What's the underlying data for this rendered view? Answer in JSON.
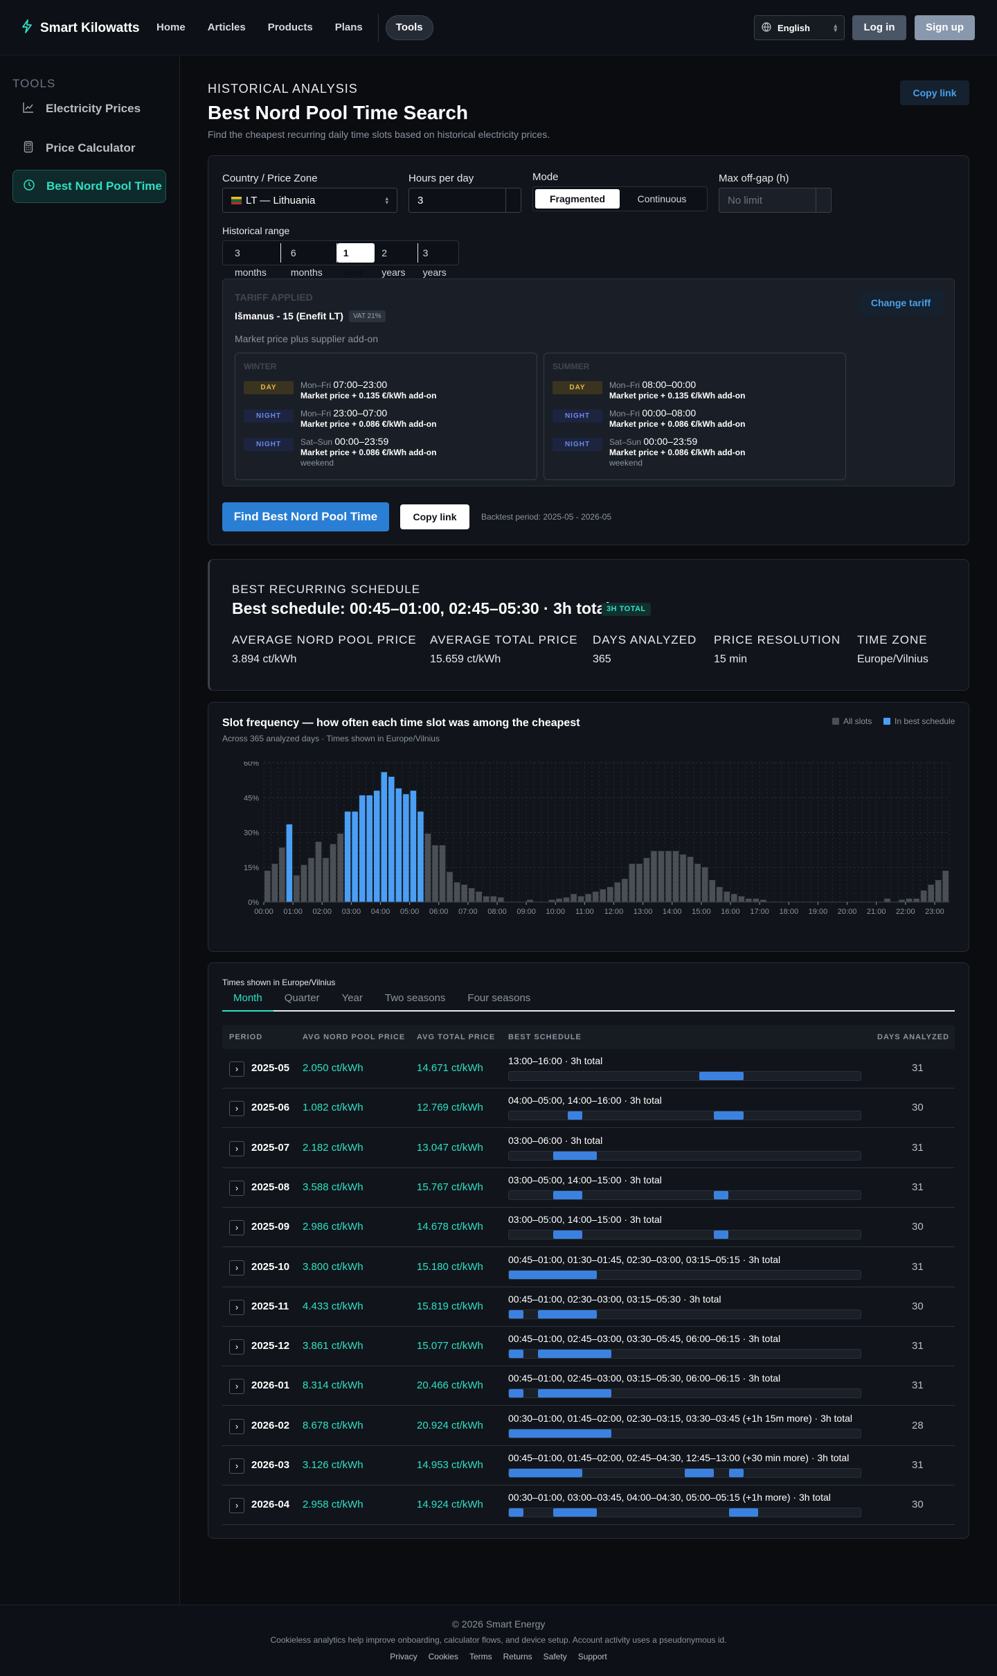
{
  "brand": {
    "name": "Smart Kilowatts"
  },
  "nav": {
    "links": [
      "Home",
      "Articles",
      "Products",
      "Plans"
    ],
    "active": "Tools"
  },
  "language": "English",
  "auth": {
    "login": "Log in",
    "signup": "Sign up"
  },
  "sidebar": {
    "title": "TOOLS",
    "items": [
      {
        "label": "Electricity Prices",
        "icon": "line-chart-icon"
      },
      {
        "label": "Price Calculator",
        "icon": "calculator-icon"
      },
      {
        "label": "Best Nord Pool Time",
        "icon": "clock-icon",
        "active": true
      }
    ]
  },
  "header": {
    "eyebrow": "HISTORICAL ANALYSIS",
    "title": "Best Nord Pool Time Search",
    "subtitle": "Find the cheapest recurring daily time slots based on historical electricity prices.",
    "copy_link": "Copy link"
  },
  "form": {
    "country_label": "Country / Price Zone",
    "country_value": "LT — Lithuania",
    "hours_label": "Hours per day",
    "hours_value": "3",
    "mode_label": "Mode",
    "mode_options": [
      "Fragmented",
      "Continuous"
    ],
    "mode_selected": "Fragmented",
    "gap_label": "Max off-gap (h)",
    "gap_placeholder": "No limit",
    "range_label": "Historical range",
    "range_options": [
      "3 months",
      "6 months",
      "1 year",
      "2 years",
      "3 years"
    ],
    "range_selected": "1 year"
  },
  "tariff": {
    "heading": "TARIFF APPLIED",
    "name": "Išmanus - 15 (Enefit LT)",
    "vat": "VAT 21%",
    "description": "Market price plus supplier add-on",
    "change": "Change tariff",
    "seasons": [
      {
        "name": "WINTER",
        "rules": [
          {
            "tag": "DAY",
            "days": "Mon–Fri",
            "time": "07:00–23:00",
            "price": "Market price + 0.135 €/kWh add-on",
            "note": ""
          },
          {
            "tag": "NIGHT",
            "days": "Mon–Fri",
            "time": "23:00–07:00",
            "price": "Market price + 0.086 €/kWh add-on",
            "note": ""
          },
          {
            "tag": "NIGHT",
            "days": "Sat–Sun",
            "time": "00:00–23:59",
            "price": "Market price + 0.086 €/kWh add-on",
            "note": "weekend"
          }
        ]
      },
      {
        "name": "SUMMER",
        "rules": [
          {
            "tag": "DAY",
            "days": "Mon–Fri",
            "time": "08:00–00:00",
            "price": "Market price + 0.135 €/kWh add-on",
            "note": ""
          },
          {
            "tag": "NIGHT",
            "days": "Mon–Fri",
            "time": "00:00–08:00",
            "price": "Market price + 0.086 €/kWh add-on",
            "note": ""
          },
          {
            "tag": "NIGHT",
            "days": "Sat–Sun",
            "time": "00:00–23:59",
            "price": "Market price + 0.086 €/kWh add-on",
            "note": "weekend"
          }
        ]
      }
    ]
  },
  "actions": {
    "find": "Find Best Nord Pool Time",
    "copy": "Copy link",
    "backtest": "Backtest period: 2025-05 - 2026-05"
  },
  "result": {
    "eyebrow": "BEST RECURRING SCHEDULE",
    "title": "Best schedule: 00:45–01:00, 02:45–05:30 · 3h total",
    "badge": "3H TOTAL",
    "stats": [
      {
        "label": "AVERAGE NORD POOL PRICE",
        "value": "3.894 ct/kWh"
      },
      {
        "label": "AVERAGE TOTAL PRICE",
        "value": "15.659 ct/kWh"
      },
      {
        "label": "DAYS ANALYZED",
        "value": "365"
      },
      {
        "label": "PRICE RESOLUTION",
        "value": "15 min"
      },
      {
        "label": "TIME ZONE",
        "value": "Europe/Vilnius"
      }
    ]
  },
  "chart_header": {
    "title": "Slot frequency — how often each time slot was among the cheapest",
    "subtitle": "Across 365 analyzed days · Times shown in Europe/Vilnius"
  },
  "chart_data": {
    "type": "bar",
    "title": "Slot frequency — how often each time slot was among the cheapest",
    "xlabel": "",
    "ylabel": "",
    "ylim": [
      0,
      60
    ],
    "y_ticks": [
      "0%",
      "15%",
      "30%",
      "45%",
      "60%"
    ],
    "x_ticks": [
      "00:00",
      "01:00",
      "02:00",
      "03:00",
      "04:00",
      "05:00",
      "06:00",
      "07:00",
      "08:00",
      "09:00",
      "10:00",
      "11:00",
      "12:00",
      "13:00",
      "14:00",
      "15:00",
      "16:00",
      "17:00",
      "18:00",
      "19:00",
      "20:00",
      "21:00",
      "22:00",
      "23:00"
    ],
    "legend": [
      "All slots",
      "In best schedule"
    ],
    "legend_position": "top-right",
    "colors": {
      "all": "#4a4e55",
      "best": "#4a9ff5"
    },
    "grid": true,
    "series": [
      {
        "name": "All slots",
        "values": [
          13.5,
          16.5,
          23.5,
          33.5,
          11.5,
          16,
          19,
          26,
          19,
          25,
          29.5,
          39,
          39,
          46,
          46,
          48,
          56,
          54,
          49,
          46.5,
          48,
          39,
          29.5,
          24.5,
          24.5,
          13,
          8.5,
          7.5,
          6,
          4.5,
          2.5,
          2.5,
          2,
          0,
          0,
          0,
          1,
          0,
          0,
          1,
          1.5,
          2,
          3.5,
          2.5,
          3.5,
          4.5,
          5.5,
          6.5,
          8.5,
          10,
          16.5,
          16.5,
          19,
          22,
          22,
          22,
          22,
          20.5,
          19.5,
          16.5,
          15,
          9.5,
          6.5,
          4.5,
          3.5,
          2.5,
          1.5,
          1.5,
          1,
          0,
          0,
          0,
          0,
          0,
          0,
          0,
          0,
          0,
          0,
          0,
          0,
          0,
          0,
          0,
          0,
          1.5,
          0,
          1,
          1.5,
          1.5,
          5,
          7.5,
          9.5,
          13.5
        ]
      },
      {
        "name": "In best schedule",
        "slots": [
          3,
          11,
          12,
          13,
          14,
          15,
          16,
          17,
          18,
          19,
          20,
          21
        ]
      }
    ]
  },
  "table": {
    "note": "Times shown in Europe/Vilnius",
    "tabs": [
      "Month",
      "Quarter",
      "Year",
      "Two seasons",
      "Four seasons"
    ],
    "active_tab": "Month",
    "columns": [
      "PERIOD",
      "AVG NORD POOL PRICE",
      "AVG TOTAL PRICE",
      "BEST SCHEDULE",
      "DAYS ANALYZED"
    ],
    "rows": [
      {
        "period": "2025-05",
        "np": "2.050 ct/kWh",
        "total": "14.671 ct/kWh",
        "schedule": "13:00–16:00 · 3h total",
        "days": "31",
        "bars": [
          [
            13,
            16
          ]
        ]
      },
      {
        "period": "2025-06",
        "np": "1.082 ct/kWh",
        "total": "12.769 ct/kWh",
        "schedule": "04:00–05:00, 14:00–16:00 · 3h total",
        "days": "30",
        "bars": [
          [
            4,
            5
          ],
          [
            14,
            16
          ]
        ]
      },
      {
        "period": "2025-07",
        "np": "2.182 ct/kWh",
        "total": "13.047 ct/kWh",
        "schedule": "03:00–06:00 · 3h total",
        "days": "31",
        "bars": [
          [
            3,
            6
          ]
        ]
      },
      {
        "period": "2025-08",
        "np": "3.588 ct/kWh",
        "total": "15.767 ct/kWh",
        "schedule": "03:00–05:00, 14:00–15:00 · 3h total",
        "days": "31",
        "bars": [
          [
            3,
            5
          ],
          [
            14,
            15
          ]
        ]
      },
      {
        "period": "2025-09",
        "np": "2.986 ct/kWh",
        "total": "14.678 ct/kWh",
        "schedule": "03:00–05:00, 14:00–15:00 · 3h total",
        "days": "30",
        "bars": [
          [
            3,
            5
          ],
          [
            14,
            15
          ]
        ]
      },
      {
        "period": "2025-10",
        "np": "3.800 ct/kWh",
        "total": "15.180 ct/kWh",
        "schedule": "00:45–01:00, 01:30–01:45, 02:30–03:00, 03:15–05:15 · 3h total",
        "days": "31",
        "bars": [
          [
            0,
            6
          ]
        ]
      },
      {
        "period": "2025-11",
        "np": "4.433 ct/kWh",
        "total": "15.819 ct/kWh",
        "schedule": "00:45–01:00, 02:30–03:00, 03:15–05:30 · 3h total",
        "days": "30",
        "bars": [
          [
            0,
            1
          ],
          [
            2,
            6
          ]
        ]
      },
      {
        "period": "2025-12",
        "np": "3.861 ct/kWh",
        "total": "15.077 ct/kWh",
        "schedule": "00:45–01:00, 02:45–03:00, 03:30–05:45, 06:00–06:15 · 3h total",
        "days": "31",
        "bars": [
          [
            0,
            1
          ],
          [
            2,
            7
          ]
        ]
      },
      {
        "period": "2026-01",
        "np": "8.314 ct/kWh",
        "total": "20.466 ct/kWh",
        "schedule": "00:45–01:00, 02:45–03:00, 03:15–05:30, 06:00–06:15 · 3h total",
        "days": "31",
        "bars": [
          [
            0,
            1
          ],
          [
            2,
            7
          ]
        ]
      },
      {
        "period": "2026-02",
        "np": "8.678 ct/kWh",
        "total": "20.924 ct/kWh",
        "schedule": "00:30–01:00, 01:45–02:00, 02:30–03:15, 03:30–03:45 (+1h 15m more) · 3h total",
        "days": "28",
        "bars": [
          [
            0,
            7
          ]
        ]
      },
      {
        "period": "2026-03",
        "np": "3.126 ct/kWh",
        "total": "14.953 ct/kWh",
        "schedule": "00:45–01:00, 01:45–02:00, 02:45–04:30, 12:45–13:00 (+30 min more) · 3h total",
        "days": "31",
        "bars": [
          [
            0,
            5
          ],
          [
            12,
            14
          ],
          [
            15,
            16
          ]
        ]
      },
      {
        "period": "2026-04",
        "np": "2.958 ct/kWh",
        "total": "14.924 ct/kWh",
        "schedule": "00:30–01:00, 03:00–03:45, 04:00–04:30, 05:00–05:15 (+1h more) · 3h total",
        "days": "30",
        "bars": [
          [
            0,
            1
          ],
          [
            3,
            6
          ],
          [
            15,
            17
          ]
        ]
      }
    ]
  },
  "footer": {
    "copyright": "© 2026 Smart Energy",
    "notice": "Cookieless analytics help improve onboarding, calculator flows, and device setup. Account activity uses a pseudonymous id.",
    "links": [
      "Privacy",
      "Cookies",
      "Terms",
      "Returns",
      "Safety",
      "Support"
    ]
  }
}
